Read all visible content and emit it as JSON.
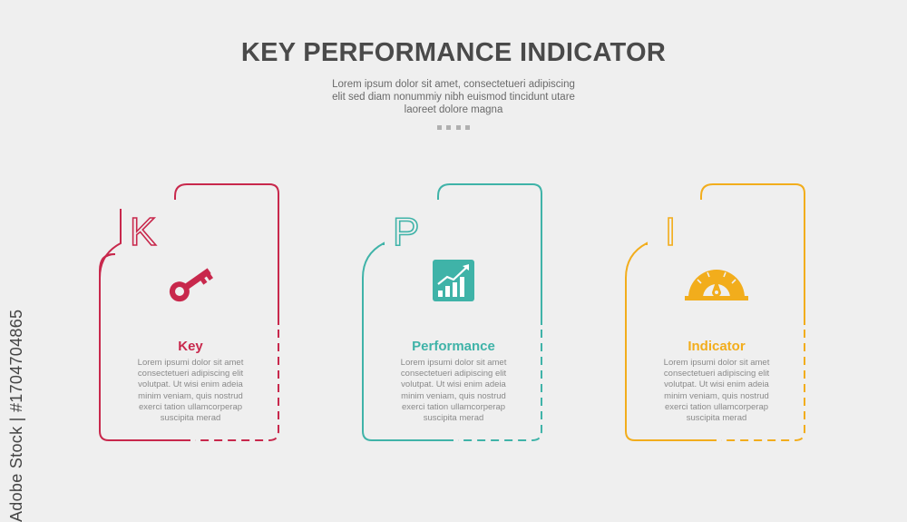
{
  "header": {
    "title": "KEY PERFORMANCE INDICATOR",
    "subtitle_lines": [
      "Lorem ipsum dolor sit amet, consectetueri adipiscing",
      "elit sed diam nonummiy nibh euismod tincidunt utare",
      "laoreet dolore magna"
    ]
  },
  "cards": [
    {
      "letter": "K",
      "title": "Key",
      "icon": "key-icon",
      "color": "#c8284c",
      "text_lines": [
        "Lorem ipsumi dolor sit amet",
        "consectetueri adipiscing elit",
        "volutpat. Ut wisi enim adeia",
        "minim veniam, quis nostrud",
        "exerci tation ullamcorperap",
        "suscipita merad"
      ]
    },
    {
      "letter": "P",
      "title": "Performance",
      "icon": "growth-chart-icon",
      "color": "#3fb3a8",
      "text_lines": [
        "Lorem ipsumi dolor sit amet",
        "consectetueri adipiscing elit",
        "volutpat. Ut wisi enim adeia",
        "minim veniam, quis nostrud",
        "exerci tation ullamcorperap",
        "suscipita merad"
      ]
    },
    {
      "letter": "I",
      "title": "Indicator",
      "icon": "speedometer-icon",
      "color": "#f2ad1c",
      "text_lines": [
        "Lorem ipsumi dolor sit amet",
        "consectetueri adipiscing elit",
        "volutpat. Ut wisi enim adeia",
        "minim veniam, quis nostrud",
        "exerci tation ullamcorperap",
        "suscipita merad"
      ]
    }
  ],
  "watermark": "Adobe Stock | #1704704865"
}
